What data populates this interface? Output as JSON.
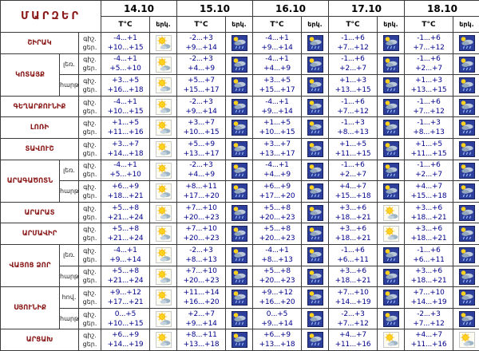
{
  "title": "ՄԱՐԶԵՐ",
  "header": {
    "dates": [
      "14.10",
      "15.10",
      "16.10",
      "17.10",
      "18.10"
    ],
    "temp_label": "T°C",
    "sky_label": "երկ.",
    "night_label": "գիշ.",
    "day_label": "ցեր."
  },
  "icons": {
    "sun-cloud": "sun with small cloud (partly cloudy)",
    "rain": "dark blue square with sun, cloud and rain"
  },
  "colors": {
    "region_name": "#8b1a1a",
    "temperature_text": "#00008b",
    "rain_icon_bg": "#2d3f9a",
    "grid_line": "#3a3a3a"
  },
  "regions": [
    {
      "name": "ՇԻՐԱԿ",
      "rows": [
        {
          "sub": "",
          "cells": [
            {
              "night": "-4...+1",
              "day": "+10...+15",
              "icon": "sun-cloud"
            },
            {
              "night": "-2...+3",
              "day": "+9...+14",
              "icon": "rain"
            },
            {
              "night": "-4...+1",
              "day": "+9...+14",
              "icon": "rain"
            },
            {
              "night": "-1...+6",
              "day": "+7...+12",
              "icon": "rain"
            },
            {
              "night": "-1...+6",
              "day": "+7...+12",
              "icon": "rain"
            }
          ]
        }
      ]
    },
    {
      "name": "ԿՈՏԱՅՔ",
      "rows": [
        {
          "sub": "լեռ.",
          "cells": [
            {
              "night": "-4...+1",
              "day": "+5...+10",
              "icon": "sun-cloud"
            },
            {
              "night": "-2...+3",
              "day": "+4...+9",
              "icon": "rain"
            },
            {
              "night": "-4...+1",
              "day": "+4...+9",
              "icon": "rain"
            },
            {
              "night": "-1...+6",
              "day": "+2...+7",
              "icon": "rain"
            },
            {
              "night": "-1...+6",
              "day": "+2...+7",
              "icon": "rain"
            }
          ]
        },
        {
          "sub": "հարթ.",
          "cells": [
            {
              "night": "+3...+5",
              "day": "+16...+18",
              "icon": "sun-cloud"
            },
            {
              "night": "+5...+7",
              "day": "+15...+17",
              "icon": "rain"
            },
            {
              "night": "+3...+5",
              "day": "+15...+17",
              "icon": "rain"
            },
            {
              "night": "+1...+3",
              "day": "+13...+15",
              "icon": "rain"
            },
            {
              "night": "+1...+3",
              "day": "+13...+15",
              "icon": "rain"
            }
          ]
        }
      ]
    },
    {
      "name": "ԳԵՂԱՐՔՈՒՆԻՔ",
      "rows": [
        {
          "sub": "",
          "cells": [
            {
              "night": "-4...+1",
              "day": "+10...+15",
              "icon": "sun-cloud"
            },
            {
              "night": "-2...+3",
              "day": "+9...+14",
              "icon": "rain"
            },
            {
              "night": "-4...+1",
              "day": "+9...+14",
              "icon": "rain"
            },
            {
              "night": "-1...+6",
              "day": "+7...+12",
              "icon": "rain"
            },
            {
              "night": "-1...+6",
              "day": "+7...+12",
              "icon": "rain"
            }
          ]
        }
      ]
    },
    {
      "name": "ԼՈՌԻ",
      "rows": [
        {
          "sub": "",
          "cells": [
            {
              "night": "+1...+5",
              "day": "+11...+16",
              "icon": "sun-cloud"
            },
            {
              "night": "+3...+7",
              "day": "+10...+15",
              "icon": "rain"
            },
            {
              "night": "+1...+5",
              "day": "+10...+15",
              "icon": "rain"
            },
            {
              "night": "-1...+3",
              "day": "+8...+13",
              "icon": "rain"
            },
            {
              "night": "-1...+3",
              "day": "+8...+13",
              "icon": "rain"
            }
          ]
        }
      ]
    },
    {
      "name": "ՏԱՎՈՒՇ",
      "rows": [
        {
          "sub": "",
          "cells": [
            {
              "night": "+3...+7",
              "day": "+14...+18",
              "icon": "sun-cloud"
            },
            {
              "night": "+5...+9",
              "day": "+13...+17",
              "icon": "rain"
            },
            {
              "night": "+3...+7",
              "day": "+13...+17",
              "icon": "rain"
            },
            {
              "night": "+1...+5",
              "day": "+11...+15",
              "icon": "rain"
            },
            {
              "night": "+1...+5",
              "day": "+11...+15",
              "icon": "rain"
            }
          ]
        }
      ]
    },
    {
      "name": "ԱՐԱԳԱԾՈՏՆ",
      "rows": [
        {
          "sub": "լեռ.",
          "cells": [
            {
              "night": "-4...+1",
              "day": "+5...+10",
              "icon": "sun-cloud"
            },
            {
              "night": "-2...+3",
              "day": "+4...+9",
              "icon": "rain"
            },
            {
              "night": "-4...+1",
              "day": "+4...+9",
              "icon": "rain"
            },
            {
              "night": "-1...+6",
              "day": "+2...+7",
              "icon": "rain"
            },
            {
              "night": "-1...+6",
              "day": "+2...+7",
              "icon": "rain"
            }
          ]
        },
        {
          "sub": "հարթ.",
          "cells": [
            {
              "night": "+6...+9",
              "day": "+18...+21",
              "icon": "sun-cloud"
            },
            {
              "night": "+8...+11",
              "day": "+17...+20",
              "icon": "rain"
            },
            {
              "night": "+6...+9",
              "day": "+17...+20",
              "icon": "rain"
            },
            {
              "night": "+4...+7",
              "day": "+15...+18",
              "icon": "rain"
            },
            {
              "night": "+4...+7",
              "day": "+15...+18",
              "icon": "rain"
            }
          ]
        }
      ]
    },
    {
      "name": "ԱՐԱՐԱՏ",
      "rows": [
        {
          "sub": "",
          "cells": [
            {
              "night": "+5...+8",
              "day": "+21...+24",
              "icon": "sun-cloud"
            },
            {
              "night": "+7...+10",
              "day": "+20...+23",
              "icon": "rain"
            },
            {
              "night": "+5...+8",
              "day": "+20...+23",
              "icon": "rain"
            },
            {
              "night": "+3...+6",
              "day": "+18...+21",
              "icon": "sun-cloud"
            },
            {
              "night": "+3...+6",
              "day": "+18...+21",
              "icon": "rain"
            }
          ]
        }
      ]
    },
    {
      "name": "ԱՐՄԱՎԻՐ",
      "rows": [
        {
          "sub": "",
          "cells": [
            {
              "night": "+5...+8",
              "day": "+21...+24",
              "icon": "sun-cloud"
            },
            {
              "night": "+7...+10",
              "day": "+20...+23",
              "icon": "rain"
            },
            {
              "night": "+5...+8",
              "day": "+20...+23",
              "icon": "rain"
            },
            {
              "night": "+3...+6",
              "day": "+18...+21",
              "icon": "sun-cloud"
            },
            {
              "night": "+3...+6",
              "day": "+18...+21",
              "icon": "rain"
            }
          ]
        }
      ]
    },
    {
      "name": "ՎԱՅՈՑ ՁՈՐ",
      "rows": [
        {
          "sub": "լեռ.",
          "cells": [
            {
              "night": "-4...+1",
              "day": "+9...+14",
              "icon": "sun-cloud"
            },
            {
              "night": "-2...+3",
              "day": "+8...+13",
              "icon": "rain"
            },
            {
              "night": "-4...+1",
              "day": "+8...+13",
              "icon": "rain"
            },
            {
              "night": "-1...+6",
              "day": "+6...+11",
              "icon": "rain"
            },
            {
              "night": "-1...+6",
              "day": "+6...+11",
              "icon": "rain"
            }
          ]
        },
        {
          "sub": "հարթ.",
          "cells": [
            {
              "night": "+5...+8",
              "day": "+21...+24",
              "icon": "sun-cloud"
            },
            {
              "night": "+7...+10",
              "day": "+20...+23",
              "icon": "rain"
            },
            {
              "night": "+5...+8",
              "day": "+20...+23",
              "icon": "rain"
            },
            {
              "night": "+3...+6",
              "day": "+18...+21",
              "icon": "rain"
            },
            {
              "night": "+3...+6",
              "day": "+18...+21",
              "icon": "rain"
            }
          ]
        }
      ]
    },
    {
      "name": "ՍՅՈՒՆԻՔ",
      "rows": [
        {
          "sub": "հով.",
          "cells": [
            {
              "night": "+9...+12",
              "day": "+17...+21",
              "icon": "sun-cloud"
            },
            {
              "night": "+11...+14",
              "day": "+16...+20",
              "icon": "rain"
            },
            {
              "night": "+9...+12",
              "day": "+16...+20",
              "icon": "rain"
            },
            {
              "night": "+7...+10",
              "day": "+14...+19",
              "icon": "rain"
            },
            {
              "night": "+7...+10",
              "day": "+14...+19",
              "icon": "rain"
            }
          ]
        },
        {
          "sub": "հարթ.",
          "cells": [
            {
              "night": "0...+5",
              "day": "+10...+15",
              "icon": "sun-cloud"
            },
            {
              "night": "+2...+7",
              "day": "+9...+14",
              "icon": "rain"
            },
            {
              "night": "0...+5",
              "day": "+9...+14",
              "icon": "rain"
            },
            {
              "night": "-2...+3",
              "day": "+7...+12",
              "icon": "rain"
            },
            {
              "night": "-2...+3",
              "day": "+7...+12",
              "icon": "rain"
            }
          ]
        }
      ]
    },
    {
      "name": "ԱՐՑԱԽ",
      "rows": [
        {
          "sub": "",
          "cells": [
            {
              "night": "+6...+9",
              "day": "+14...+19",
              "icon": "sun-cloud"
            },
            {
              "night": "+8...+11",
              "day": "+13...+18",
              "icon": "rain"
            },
            {
              "night": "+6...+9",
              "day": "+13...+18",
              "icon": "rain"
            },
            {
              "night": "+4...+7",
              "day": "+11...+16",
              "icon": "sun-cloud"
            },
            {
              "night": "+4...+7",
              "day": "+11...+16",
              "icon": "sun-cloud"
            }
          ]
        }
      ]
    }
  ]
}
